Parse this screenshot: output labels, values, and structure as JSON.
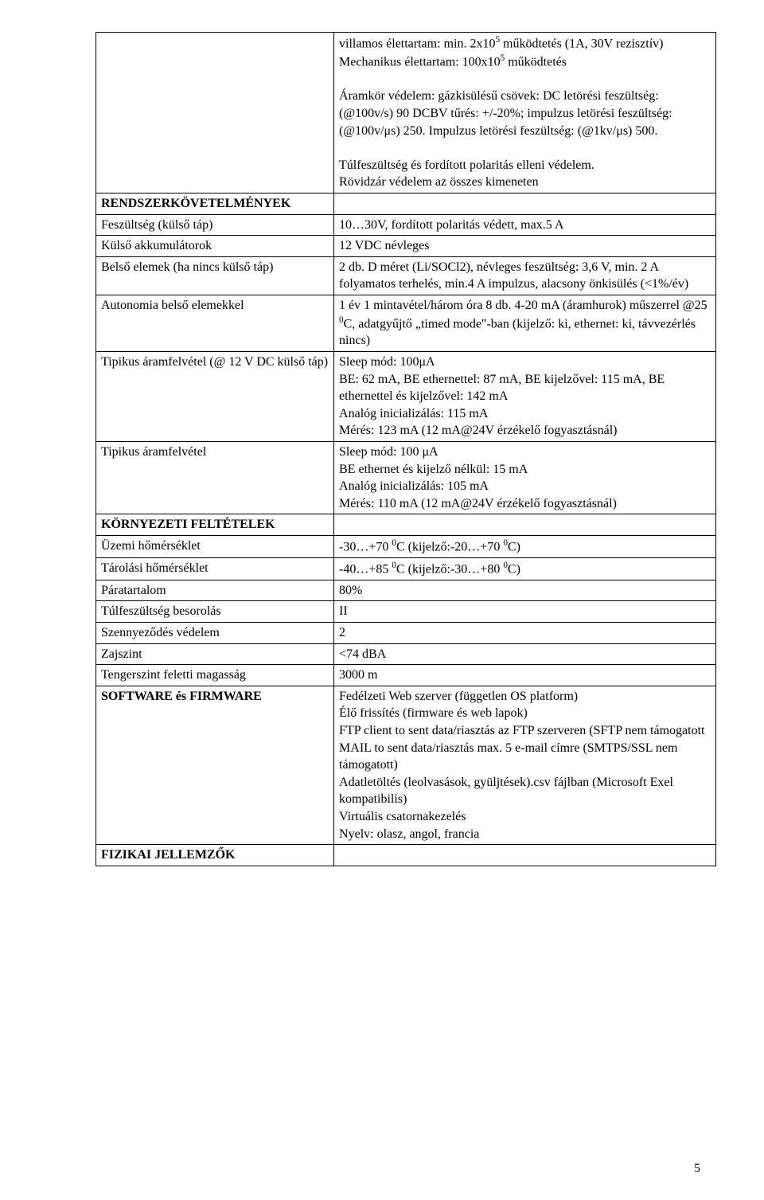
{
  "preamble": {
    "line1": "villamos élettartam: min. 2x10",
    "sup1": "5",
    "line1b": " működtetés (1A, 30V rezisztív)",
    "line2a": "Mechanikus élettartam: 100x10",
    "sup2": "5",
    "line2b": " működtetés",
    "para2": "Áramkör védelem: gázkisülésű csövek: DC letörési feszültség:\n(@100v/s) 90 DCBV tűrés: +/-20%; impulzus letörési feszültség:\n(@100v/μs) 250. Impulzus letörési feszültség: (@1kv/μs) 500.",
    "para3": "Túlfeszültség és fordított polaritás elleni védelem.\nRövidzár védelem az összes kimeneten"
  },
  "sections": {
    "sys_req": "RENDSZERKÖVETELMÉNYEK",
    "env": "KÖRNYEZETI FELTÉTELEK",
    "sw": "SOFTWARE és FIRMWARE",
    "phys": "FIZIKAI JELLEMZŐK"
  },
  "rows": {
    "volt_ext": {
      "label": "Feszültség (külső táp)",
      "value": "10…30V, fordított polaritás védett, max.5 A"
    },
    "ext_batt": {
      "label": "Külső akkumulátorok",
      "value": "12 VDC névleges"
    },
    "int_cells": {
      "label": "Belső elemek (ha nincs külső táp)",
      "value": "2 db. D méret (Li/SOCl2), névleges feszültség: 3,6 V, min. 2 A folyamatos terhelés, min.4 A impulzus, alacsony önkisülés (<1%/év)"
    },
    "autonomy": {
      "label": "Autonomia belső elemekkel",
      "part1": "1 év 1 mintavétel/három óra 8 db. 4-20 mA (áramhurok) műszerrel @25 ",
      "sup": "0",
      "part2": "C, adatgyűjtő „timed mode\"-ban (kijelző: ki, ethernet: ki, távvezérlés nincs)"
    },
    "typ_current_12v": {
      "label": "Tipikus áramfelvétel (@ 12 V DC külső táp)",
      "value": "Sleep mód: 100μA\nBE: 62 mA, BE ethernettel: 87 mA, BE kijelzővel: 115 mA, BE ethernettel és kijelzővel: 142 mA\nAnalóg inicializálás: 115 mA\nMérés: 123 mA (12 mA@24V érzékelő fogyasztásnál)"
    },
    "typ_current": {
      "label": "Tipikus áramfelvétel",
      "value": "Sleep mód: 100 μA\nBE ethernet és kijelző nélkül: 15 mA\nAnalóg inicializálás: 105 mA\nMérés: 110 mA (12 mA@24V érzékelő fogyasztásnál)"
    },
    "op_temp": {
      "label": "Üzemi hőmérséklet",
      "p1": "-30…+70 ",
      "s1": "0",
      "p2": "C (kijelző:-20…+70 ",
      "s2": "0",
      "p3": "C)"
    },
    "storage_temp": {
      "label": "Tárolási hőmérséklet",
      "p1": "-40…+85 ",
      "s1": "0",
      "p2": "C (kijelző:-30…+80 ",
      "s2": "0",
      "p3": "C)"
    },
    "humidity": {
      "label": "Páratartalom",
      "value": "80%"
    },
    "overvolt": {
      "label": "Túlfeszültség besorolás",
      "value": "II"
    },
    "pollution": {
      "label": "Szennyeződés védelem",
      "value": "2"
    },
    "noise": {
      "label": "Zajszint",
      "value": "<74 dBA"
    },
    "altitude": {
      "label": "Tengerszint feletti magasság",
      "value": "3000 m"
    },
    "software": {
      "value": "Fedélzeti Web szerver (független OS platform)\nÉlő frissítés (firmware és web lapok)\nFTP client to sent data/riasztás az FTP szerveren (SFTP nem támogatott\nMAIL to sent data/riasztás max. 5 e-mail címre (SMTPS/SSL nem támogatott)\nAdatletöltés (leolvasások, gyüljtések).csv fájlban (Microsoft Exel kompatibilis)\nVirtuális csatornakezelés\nNyelv: olasz, angol, francia"
    }
  },
  "page_number": "5"
}
